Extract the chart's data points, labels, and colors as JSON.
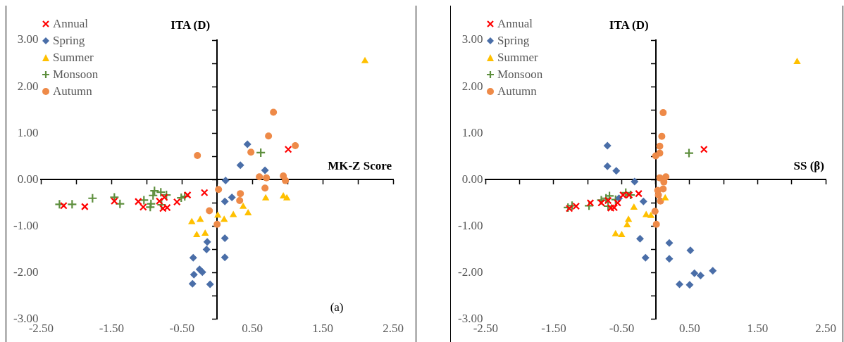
{
  "chart_data": [
    {
      "type": "scatter",
      "xlabel": "MK-Z Score",
      "ylabel": "ITA (D)",
      "annotations": [
        "(a)"
      ],
      "legend": "top left",
      "xlim": [
        -2.5,
        2.5
      ],
      "ylim": [
        -3,
        3
      ],
      "xticks": [
        {
          "value": -2.5,
          "label": "-2.50"
        },
        {
          "value": -2,
          "label": null
        },
        {
          "value": -1.5,
          "label": "-1.50"
        },
        {
          "value": -1,
          "label": null
        },
        {
          "value": -0.5,
          "label": "-0.50"
        },
        {
          "value": 0,
          "label": null
        },
        {
          "value": 0.5,
          "label": "0.50"
        },
        {
          "value": 1,
          "label": null
        },
        {
          "value": 1.5,
          "label": "1.50"
        },
        {
          "value": 2,
          "label": null
        },
        {
          "value": 2.5,
          "label": "2.50"
        }
      ],
      "yticks": [
        {
          "value": -3,
          "label": "-3.00"
        },
        {
          "value": -2.5,
          "label": null
        },
        {
          "value": -2,
          "label": "-2.00"
        },
        {
          "value": -1.5,
          "label": null
        },
        {
          "value": -1,
          "label": "-1.00"
        },
        {
          "value": -0.5,
          "label": null
        },
        {
          "value": 0,
          "label": "0.00"
        },
        {
          "value": 0.5,
          "label": null
        },
        {
          "value": 1,
          "label": "1.00"
        },
        {
          "value": 1.5,
          "label": null
        },
        {
          "value": 2,
          "label": "2.00"
        },
        {
          "value": 2.5,
          "label": null
        },
        {
          "value": 3,
          "label": "3.00"
        }
      ],
      "series": [
        {
          "name": "Annual",
          "color": "#ff0000",
          "marker": "cross",
          "x": [
            -2.18,
            -1.88,
            -1.46,
            -1.12,
            -1.05,
            -0.82,
            -0.75,
            -0.77,
            -0.71,
            -0.57,
            -0.42,
            -0.18,
            1.01
          ],
          "values": [
            -0.56,
            -0.58,
            -0.46,
            -0.47,
            -0.59,
            -0.46,
            -0.38,
            -0.62,
            -0.6,
            -0.48,
            -0.33,
            -0.28,
            0.65
          ]
        },
        {
          "name": "Spring",
          "color": "#4a6ea8",
          "marker": "diamond",
          "x": [
            0.12,
            0.43,
            0.33,
            0.68,
            0.21,
            0.11,
            -0.14,
            -0.15,
            0.11,
            0.11,
            -0.34,
            -0.25,
            -0.33,
            -0.21,
            -0.35,
            -0.1
          ],
          "values": [
            -0.02,
            0.76,
            0.31,
            0.2,
            -0.38,
            -0.47,
            -1.34,
            -1.5,
            -1.26,
            -1.67,
            -1.68,
            -1.93,
            -2.04,
            -1.99,
            -2.24,
            -2.25
          ]
        },
        {
          "name": "Summer",
          "color": "#ffc000",
          "marker": "triangle",
          "x": [
            2.1,
            0.69,
            0.94,
            0.99,
            0.37,
            0.44,
            0.23,
            0.01,
            0.1,
            -0.36,
            -0.24,
            -0.29,
            -0.17
          ],
          "values": [
            2.55,
            -0.4,
            -0.36,
            -0.4,
            -0.58,
            -0.72,
            -0.76,
            -0.77,
            -0.86,
            -0.91,
            -0.86,
            -1.19,
            -1.16
          ]
        },
        {
          "name": "Monsoon",
          "color": "#5e8f3e",
          "marker": "plus",
          "x": [
            -2.24,
            -2.06,
            -1.77,
            -1.46,
            -1.38,
            -1.04,
            -0.95,
            -0.94,
            -0.89,
            -0.91,
            -0.8,
            -0.79,
            -0.72,
            -0.51,
            -0.46,
            0.62
          ],
          "values": [
            -0.53,
            -0.53,
            -0.4,
            -0.38,
            -0.52,
            -0.44,
            -0.59,
            -0.52,
            -0.24,
            -0.34,
            -0.27,
            -0.54,
            -0.33,
            -0.39,
            -0.36,
            0.58
          ]
        },
        {
          "name": "Autumn",
          "color": "#ee8a48",
          "marker": "circle",
          "x": [
            -0.28,
            -0.11,
            0.8,
            0.73,
            1.11,
            0.48,
            0.6,
            0.7,
            0.94,
            0.97,
            0.68,
            0.02,
            0.33,
            0.32,
            0.0
          ],
          "values": [
            0.52,
            -0.67,
            1.45,
            0.94,
            0.73,
            0.59,
            0.06,
            0.04,
            0.08,
            -0.02,
            -0.18,
            -0.21,
            -0.3,
            -0.45,
            -0.96
          ]
        }
      ]
    },
    {
      "type": "scatter",
      "xlabel": "SS (β)",
      "ylabel": "ITA (D)",
      "legend": "top left",
      "xlim": [
        -2.5,
        2.5
      ],
      "ylim": [
        -3,
        3
      ],
      "xticks": [
        {
          "value": -2.5,
          "label": "-2.50"
        },
        {
          "value": -2,
          "label": null
        },
        {
          "value": -1.5,
          "label": "-1.50"
        },
        {
          "value": -1,
          "label": null
        },
        {
          "value": -0.5,
          "label": "-0.50"
        },
        {
          "value": 0,
          "label": null
        },
        {
          "value": 0.5,
          "label": "0.50"
        },
        {
          "value": 1,
          "label": null
        },
        {
          "value": 1.5,
          "label": "1.50"
        },
        {
          "value": 2,
          "label": null
        },
        {
          "value": 2.5,
          "label": "2.50"
        }
      ],
      "yticks": [
        {
          "value": -3,
          "label": "-3.00"
        },
        {
          "value": -2.5,
          "label": null
        },
        {
          "value": -2,
          "label": "-2.00"
        },
        {
          "value": -1.5,
          "label": null
        },
        {
          "value": -1,
          "label": "-1.00"
        },
        {
          "value": -0.5,
          "label": null
        },
        {
          "value": 0,
          "label": "0.00"
        },
        {
          "value": 0.5,
          "label": null
        },
        {
          "value": 1,
          "label": "1.00"
        },
        {
          "value": 1.5,
          "label": null
        },
        {
          "value": 2,
          "label": "2.00"
        },
        {
          "value": 2.5,
          "label": null
        },
        {
          "value": 3,
          "label": "3.00"
        }
      ],
      "series": [
        {
          "name": "Annual",
          "color": "#ff0000",
          "marker": "cross",
          "x": [
            -1.27,
            -1.17,
            -0.96,
            -0.8,
            -0.66,
            -0.61,
            -0.56,
            -0.48,
            -0.25,
            -0.7,
            -0.39,
            0.71
          ],
          "values": [
            -0.62,
            -0.57,
            -0.5,
            -0.5,
            -0.61,
            -0.6,
            -0.5,
            -0.33,
            -0.3,
            -0.45,
            -0.33,
            0.65
          ]
        },
        {
          "name": "Spring",
          "color": "#4a6ea8",
          "marker": "diamond",
          "x": [
            -0.71,
            -0.71,
            -0.58,
            -0.31,
            -0.54,
            -0.18,
            -0.23,
            -0.15,
            0.2,
            0.51,
            0.2,
            0.57,
            0.66,
            0.84,
            0.35,
            0.5
          ],
          "values": [
            0.73,
            0.29,
            0.19,
            -0.04,
            -0.4,
            -0.47,
            -1.27,
            -1.68,
            -1.36,
            -1.52,
            -1.7,
            -2.01,
            -2.06,
            -1.96,
            -2.25,
            -2.26
          ]
        },
        {
          "name": "Summer",
          "color": "#ffc000",
          "marker": "triangle",
          "x": [
            2.08,
            0.14,
            -0.14,
            -0.07,
            -0.32,
            -0.4,
            -0.42,
            -0.59,
            -0.5
          ],
          "values": [
            2.53,
            -0.4,
            -0.76,
            -0.78,
            -0.6,
            -0.86,
            -0.98,
            -1.17,
            -1.19
          ]
        },
        {
          "name": "Monsoon",
          "color": "#5e8f3e",
          "marker": "plus",
          "x": [
            -1.29,
            -1.23,
            -0.98,
            -0.8,
            -0.73,
            -0.68,
            -0.7,
            -0.59,
            -0.44,
            -0.37,
            0.49
          ],
          "values": [
            -0.6,
            -0.56,
            -0.56,
            -0.44,
            -0.4,
            -0.35,
            -0.57,
            -0.43,
            -0.28,
            -0.33,
            0.57
          ]
        },
        {
          "name": "Autumn",
          "color": "#ee8a48",
          "marker": "circle",
          "x": [
            0.11,
            0.09,
            0.06,
            0.06,
            0.0,
            0.06,
            0.15,
            0.12,
            0.03,
            0.11,
            0.04,
            0.07,
            -0.01,
            0.01
          ],
          "values": [
            1.44,
            0.93,
            0.72,
            0.57,
            0.51,
            0.04,
            0.06,
            -0.05,
            -0.23,
            -0.2,
            -0.33,
            -0.46,
            -0.68,
            -0.96
          ]
        }
      ]
    }
  ]
}
